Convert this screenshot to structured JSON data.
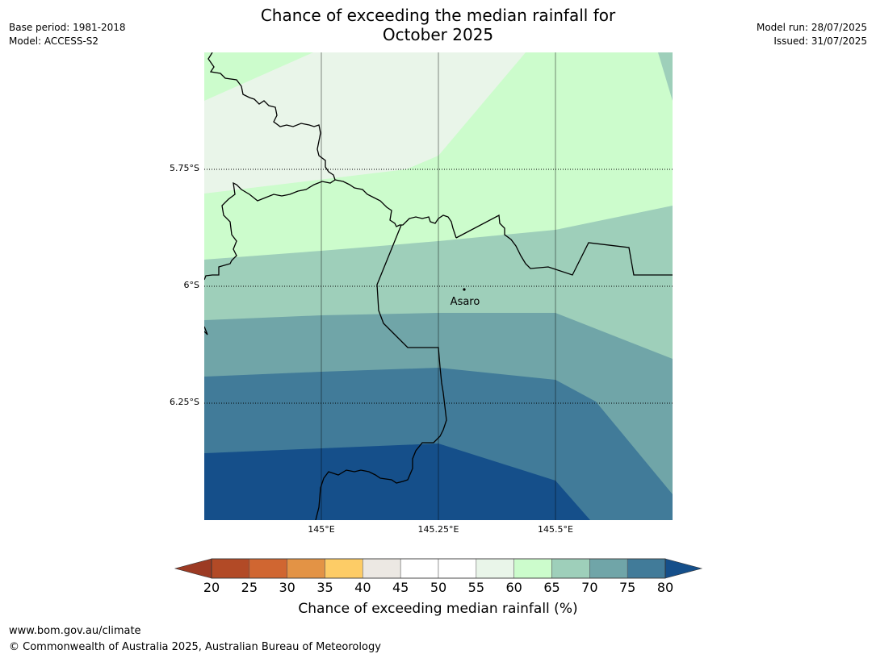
{
  "header": {
    "title_line1": "Chance of exceeding the median rainfall for",
    "title_line2": "October 2025",
    "base_period": "Base period: 1981-2018",
    "model": "Model: ACCESS-S2",
    "model_run": "Model run: 28/07/2025",
    "issued": "Issued: 31/07/2025"
  },
  "map": {
    "lat_labels": [
      "5.75°S",
      "6°S",
      "6.25°S"
    ],
    "lon_labels": [
      "145°E",
      "145.25°E",
      "145.5°E"
    ],
    "place": {
      "name": "Asaro"
    }
  },
  "colorbar": {
    "ticks": [
      "20",
      "25",
      "30",
      "35",
      "40",
      "45",
      "50",
      "55",
      "60",
      "65",
      "70",
      "75",
      "80"
    ],
    "label": "Chance of exceeding median rainfall (%)",
    "colors": {
      "below_20": "#9c3a23",
      "20_25": "#b24a26",
      "25_30": "#d06631",
      "30_35": "#e39345",
      "35_40": "#fdcc66",
      "40_45": "#ece8e3",
      "45_50": "#ffffff",
      "50_55": "#ffffff",
      "55_60": "#e9f5e9",
      "60_65": "#ccfccc",
      "65_70": "#9ecfba",
      "70_75": "#70a5a8",
      "75_80": "#417b99",
      "above_80": "#154f8a"
    }
  },
  "footer": {
    "url": "www.bom.gov.au/climate",
    "copyright": "© Commonwealth of Australia 2025, Australian Bureau of Meteorology"
  }
}
